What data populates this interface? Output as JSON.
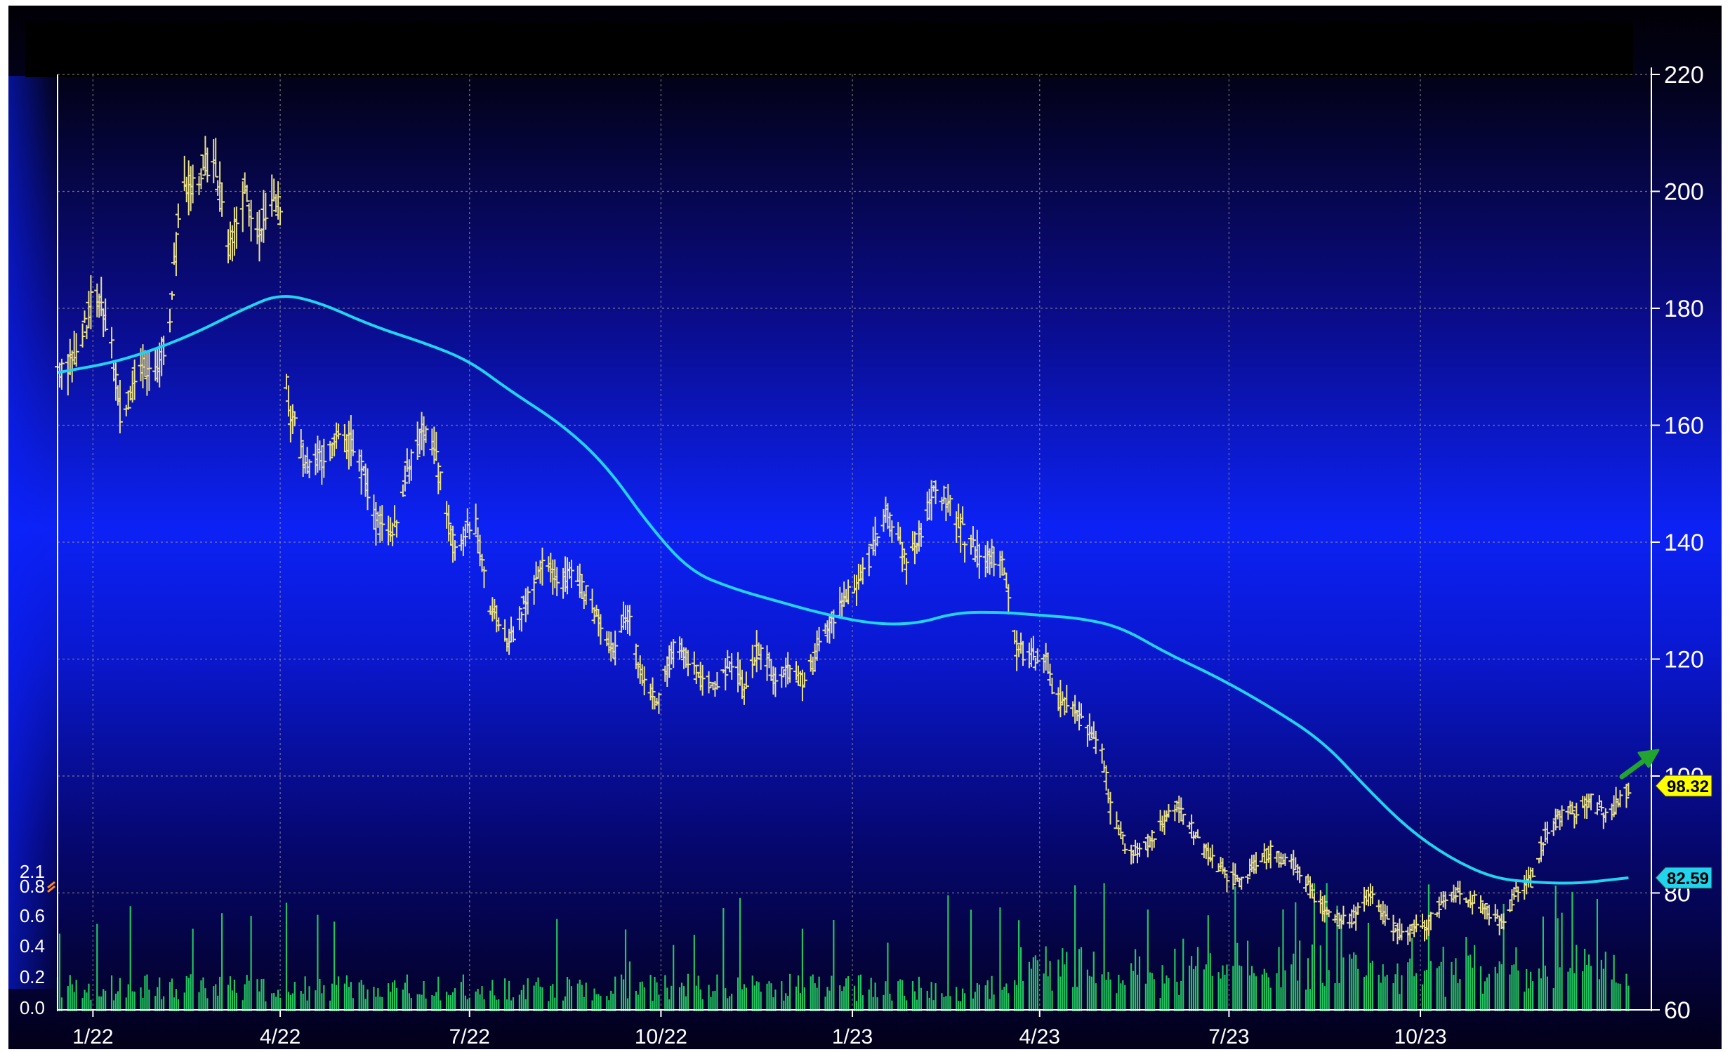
{
  "chart_data": {
    "type": "ohlc",
    "title": "",
    "xlabel": "",
    "ylabel": "",
    "price_axis": {
      "ylim": [
        60,
        220
      ],
      "ticks": [
        220,
        200,
        180,
        160,
        140,
        120,
        100,
        80,
        60
      ],
      "position": "right"
    },
    "volume_axis": {
      "ticks": [
        "2.1",
        "0.8",
        "0.6",
        "0.4",
        "0.2",
        "0.0"
      ],
      "position": "left"
    },
    "x_axis": {
      "range": [
        "2021-12-15",
        "2024-01-20"
      ],
      "ticks": [
        {
          "date": "2022-01-01",
          "label": "1/22"
        },
        {
          "date": "2022-04-01",
          "label": "4/22"
        },
        {
          "date": "2022-07-01",
          "label": "7/22"
        },
        {
          "date": "2022-10-01",
          "label": "10/22"
        },
        {
          "date": "2023-01-01",
          "label": "1/23"
        },
        {
          "date": "2023-04-01",
          "label": "4/23"
        },
        {
          "date": "2023-07-01",
          "label": "7/23"
        },
        {
          "date": "2023-10-01",
          "label": "10/23"
        }
      ]
    },
    "grid": true,
    "legend": "none",
    "series": [
      {
        "role": "price_bars",
        "color": "#e8e08a",
        "keypoints": [
          [
            "2021-12-15",
            169
          ],
          [
            "2021-12-25",
            172
          ],
          [
            "2022-01-01",
            182
          ],
          [
            "2022-01-08",
            178
          ],
          [
            "2022-01-15",
            160
          ],
          [
            "2022-01-22",
            170
          ],
          [
            "2022-01-31",
            168
          ],
          [
            "2022-02-07",
            178
          ],
          [
            "2022-02-12",
            200
          ],
          [
            "2022-02-20",
            203
          ],
          [
            "2022-02-28",
            205
          ],
          [
            "2022-03-08",
            190
          ],
          [
            "2022-03-15",
            200
          ],
          [
            "2022-03-22",
            193
          ],
          [
            "2022-03-29",
            200
          ],
          [
            "2022-04-01",
            196
          ],
          [
            "2022-04-02",
            172
          ],
          [
            "2022-04-06",
            162
          ],
          [
            "2022-04-14",
            152
          ],
          [
            "2022-04-22",
            155
          ],
          [
            "2022-05-01",
            158
          ],
          [
            "2022-05-08",
            156
          ],
          [
            "2022-05-15",
            145
          ],
          [
            "2022-05-25",
            140
          ],
          [
            "2022-06-01",
            152
          ],
          [
            "2022-06-10",
            160
          ],
          [
            "2022-06-15",
            155
          ],
          [
            "2022-06-18",
            148
          ],
          [
            "2022-06-25",
            138
          ],
          [
            "2022-07-03",
            145
          ],
          [
            "2022-07-10",
            130
          ],
          [
            "2022-07-20",
            123
          ],
          [
            "2022-07-28",
            130
          ],
          [
            "2022-08-05",
            136
          ],
          [
            "2022-08-13",
            133
          ],
          [
            "2022-08-21",
            135
          ],
          [
            "2022-08-30",
            128
          ],
          [
            "2022-09-08",
            121
          ],
          [
            "2022-09-15",
            128
          ],
          [
            "2022-09-22",
            117
          ],
          [
            "2022-09-29",
            112
          ],
          [
            "2022-10-08",
            123
          ],
          [
            "2022-10-17",
            118
          ],
          [
            "2022-10-27",
            115
          ],
          [
            "2022-11-03",
            120
          ],
          [
            "2022-11-10",
            115
          ],
          [
            "2022-11-17",
            122
          ],
          [
            "2022-11-25",
            117
          ],
          [
            "2022-12-02",
            118
          ],
          [
            "2022-12-10",
            116
          ],
          [
            "2022-12-17",
            124
          ],
          [
            "2022-12-25",
            128
          ],
          [
            "2023-01-01",
            132
          ],
          [
            "2023-01-10",
            138
          ],
          [
            "2023-01-18",
            145
          ],
          [
            "2023-01-27",
            137
          ],
          [
            "2023-02-03",
            142
          ],
          [
            "2023-02-10",
            150
          ],
          [
            "2023-02-18",
            145
          ],
          [
            "2023-02-26",
            140
          ],
          [
            "2023-03-05",
            137
          ],
          [
            "2023-03-12",
            138
          ],
          [
            "2023-03-16",
            133
          ],
          [
            "2023-03-21",
            122
          ],
          [
            "2023-03-30",
            120
          ],
          [
            "2023-04-04",
            121
          ],
          [
            "2023-04-08",
            113
          ],
          [
            "2023-04-16",
            112
          ],
          [
            "2023-04-24",
            108
          ],
          [
            "2023-05-01",
            104
          ],
          [
            "2023-05-05",
            95
          ],
          [
            "2023-05-12",
            88
          ],
          [
            "2023-05-20",
            87
          ],
          [
            "2023-05-30",
            92
          ],
          [
            "2023-06-06",
            95
          ],
          [
            "2023-06-13",
            91
          ],
          [
            "2023-06-20",
            87
          ],
          [
            "2023-06-30",
            83
          ],
          [
            "2023-07-07",
            82
          ],
          [
            "2023-07-14",
            85
          ],
          [
            "2023-07-21",
            87
          ],
          [
            "2023-08-01",
            85
          ],
          [
            "2023-08-10",
            80
          ],
          [
            "2023-08-17",
            77
          ],
          [
            "2023-08-24",
            75
          ],
          [
            "2023-08-31",
            76
          ],
          [
            "2023-09-07",
            80
          ],
          [
            "2023-09-14",
            76
          ],
          [
            "2023-09-21",
            73
          ],
          [
            "2023-09-28",
            74
          ],
          [
            "2023-10-05",
            75
          ],
          [
            "2023-10-12",
            79
          ],
          [
            "2023-10-19",
            80
          ],
          [
            "2023-10-26",
            79
          ],
          [
            "2023-11-02",
            77
          ],
          [
            "2023-11-09",
            75
          ],
          [
            "2023-11-16",
            80
          ],
          [
            "2023-11-23",
            82
          ],
          [
            "2023-11-30",
            90
          ],
          [
            "2023-12-07",
            93
          ],
          [
            "2023-12-14",
            94
          ],
          [
            "2023-12-21",
            96
          ],
          [
            "2023-12-28",
            94
          ],
          [
            "2024-01-04",
            95
          ],
          [
            "2024-01-09",
            98
          ]
        ]
      },
      {
        "role": "moving_average",
        "color": "#22d3ee",
        "keypoints": [
          [
            "2021-12-15",
            169
          ],
          [
            "2022-01-15",
            171
          ],
          [
            "2022-02-15",
            175
          ],
          [
            "2022-03-15",
            180
          ],
          [
            "2022-04-01",
            182.5
          ],
          [
            "2022-04-20",
            181
          ],
          [
            "2022-05-15",
            177
          ],
          [
            "2022-06-10",
            174
          ],
          [
            "2022-07-01",
            171
          ],
          [
            "2022-07-20",
            166
          ],
          [
            "2022-08-15",
            160
          ],
          [
            "2022-09-05",
            153
          ],
          [
            "2022-09-25",
            143
          ],
          [
            "2022-10-15",
            135
          ],
          [
            "2022-11-05",
            132
          ],
          [
            "2022-11-25",
            130
          ],
          [
            "2022-12-15",
            128
          ],
          [
            "2023-01-10",
            126
          ],
          [
            "2023-02-01",
            126
          ],
          [
            "2023-02-20",
            128
          ],
          [
            "2023-03-15",
            128
          ],
          [
            "2023-04-01",
            127.5
          ],
          [
            "2023-04-20",
            127
          ],
          [
            "2023-05-10",
            125.5
          ],
          [
            "2023-06-01",
            121
          ],
          [
            "2023-06-25",
            117
          ],
          [
            "2023-07-20",
            112
          ],
          [
            "2023-08-15",
            106
          ],
          [
            "2023-09-05",
            98
          ],
          [
            "2023-09-25",
            91
          ],
          [
            "2023-10-15",
            86
          ],
          [
            "2023-11-05",
            82.5
          ],
          [
            "2023-11-25",
            81.8
          ],
          [
            "2023-12-15",
            81.6
          ],
          [
            "2024-01-04",
            82.4
          ],
          [
            "2024-01-09",
            82.59
          ]
        ]
      }
    ],
    "volume_bars": {
      "color": "#22c55e",
      "baseline": "0.0",
      "typical": "0.05-0.3"
    },
    "last_price_label": {
      "value": "98.32",
      "background": "#ffff00",
      "text_color": "#000000"
    },
    "moving_average_label": {
      "value": "82.59",
      "background": "#22d3ee",
      "text_color": "#000000"
    },
    "annotation": {
      "type": "arrow",
      "direction": "up-right",
      "color": "#22a52e"
    }
  },
  "colors": {
    "background_top": "#000000",
    "background_mid": "#0a1ff5",
    "grid": "#8f8f8f",
    "axis_text": "#ffffff",
    "black_bar": "#000000"
  }
}
